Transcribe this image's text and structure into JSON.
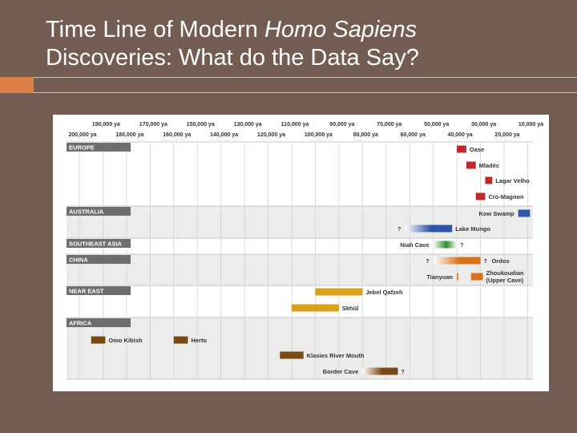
{
  "slide": {
    "title_part1": "Time Line of Modern ",
    "title_italic": "Homo Sapiens",
    "title_line2": "Discoveries: What do the Data Say?"
  },
  "colors": {
    "background": "#735d52",
    "accent": "#dd8047",
    "europe": "#c0282d",
    "australia": "#2f55a8",
    "southeast_asia": "#2e8b2e",
    "china": "#d9731b",
    "near_east": "#d9a21b",
    "africa": "#7a4a16"
  },
  "timeline": {
    "top_ticks": [
      "190,000 ya",
      "170,000 ya",
      "150,000 ya",
      "130,000 ya",
      "110,000 ya",
      "90,000 ya",
      "70,000 ya",
      "50,000 ya",
      "30,000 ya",
      "10,000 ya"
    ],
    "bottom_ticks": [
      "200,000 ya",
      "180,000 ya",
      "160,000 ya",
      "140,000 ya",
      "120,000 ya",
      "100,000 ya",
      "80,000 ya",
      "60,000 ya",
      "40,000 ya",
      "20,000 ya"
    ],
    "regions": [
      "EUROPE",
      "AUSTRALIA",
      "SOUTHEAST ASIA",
      "CHINA",
      "NEAR EAST",
      "AFRICA"
    ],
    "sites": [
      {
        "name": "Oase",
        "region": "EUROPE",
        "start_ya": 40000,
        "end_ya": 36000
      },
      {
        "name": "Mladéc",
        "region": "EUROPE",
        "start_ya": 36000,
        "end_ya": 32000
      },
      {
        "name": "Lagar Velho",
        "region": "EUROPE",
        "start_ya": 28000,
        "end_ya": 25000
      },
      {
        "name": "Cro-Magnon",
        "region": "EUROPE",
        "start_ya": 32000,
        "end_ya": 28000
      },
      {
        "name": "Kow Swamp",
        "region": "AUSTRALIA",
        "start_ya": 14000,
        "end_ya": 9000
      },
      {
        "name": "Lake Mungo",
        "region": "AUSTRALIA",
        "start_ya": 62000,
        "end_ya": 42000,
        "uncertain_start": "?"
      },
      {
        "name": "Niah Cave",
        "region": "SOUTHEAST ASIA",
        "start_ya": 50000,
        "end_ya": 40000,
        "uncertain_end": "?"
      },
      {
        "name": "Ordos",
        "region": "CHINA",
        "start_ya": 50000,
        "end_ya": 30000,
        "uncertain_start": "?",
        "uncertain_end": "?"
      },
      {
        "name": "Tianyuan",
        "region": "CHINA",
        "start_ya": 40000,
        "end_ya": 39000
      },
      {
        "name": "Zhoukoudian (Upper Cave)",
        "region": "CHINA",
        "start_ya": 34000,
        "end_ya": 29000
      },
      {
        "name": "Jebel Qafzeh",
        "region": "NEAR EAST",
        "start_ya": 100000,
        "end_ya": 80000
      },
      {
        "name": "Skhūl",
        "region": "NEAR EAST",
        "start_ya": 110000,
        "end_ya": 90000
      },
      {
        "name": "Omo Kibish",
        "region": "AFRICA",
        "start_ya": 195000,
        "end_ya": 189000
      },
      {
        "name": "Herto",
        "region": "AFRICA",
        "start_ya": 160000,
        "end_ya": 154000
      },
      {
        "name": "Klasies River Mouth",
        "region": "AFRICA",
        "start_ya": 115000,
        "end_ya": 105000
      },
      {
        "name": "Border Cave",
        "region": "AFRICA",
        "start_ya": 80000,
        "end_ya": 65000,
        "uncertain_end": "?"
      }
    ]
  }
}
